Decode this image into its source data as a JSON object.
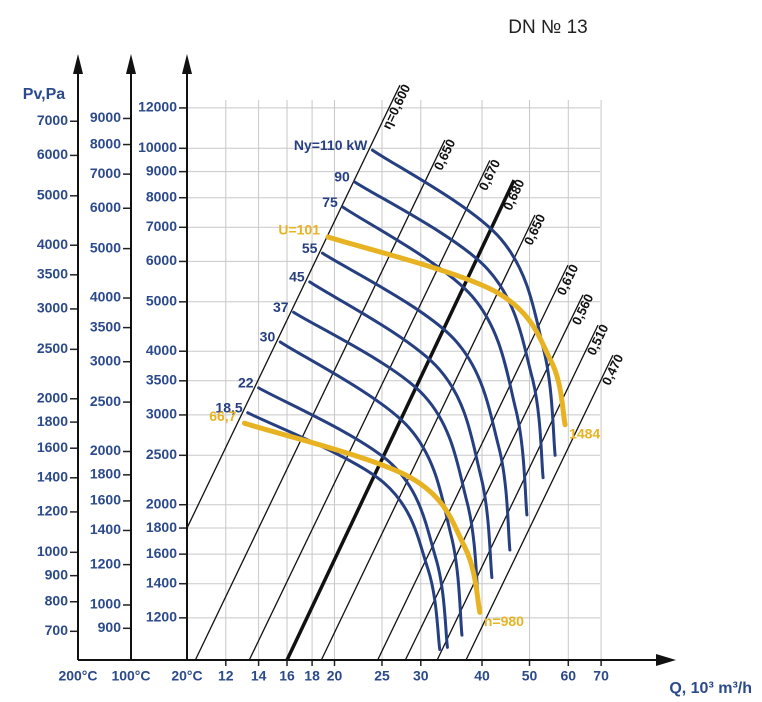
{
  "chart_data": {
    "type": "fan-chart",
    "title": "DN № 13",
    "y_label": "Pv,Pa",
    "x_label": "Q, 10³ m³/h",
    "x_log": true,
    "y_log": true,
    "grid": true,
    "xlim": [
      10,
      100
    ],
    "xticks": [
      12,
      14,
      16,
      18,
      20,
      25,
      30,
      40,
      50,
      60,
      70
    ],
    "y_axes": [
      {
        "label": "200°C",
        "ylim": [
          615,
          9230
        ],
        "yticks": [
          700,
          800,
          900,
          1000,
          1200,
          1400,
          1600,
          1800,
          2000,
          2500,
          3000,
          3500,
          4000,
          5000,
          6000,
          7000
        ]
      },
      {
        "label": "100°C",
        "ylim": [
          780,
          11720
        ],
        "yticks": [
          900,
          1000,
          1200,
          1400,
          1600,
          1800,
          2000,
          2500,
          3000,
          3500,
          4000,
          5000,
          6000,
          7000,
          8000,
          9000
        ]
      },
      {
        "label": "20°C",
        "ylim": [
          992,
          14900
        ],
        "yticks": [
          1200,
          1400,
          1600,
          1800,
          2000,
          2500,
          3000,
          3500,
          4000,
          5000,
          6000,
          7000,
          8000,
          9000,
          10000,
          12000
        ]
      }
    ],
    "efficiency_color": "#111111",
    "efficiency_lines": [
      {
        "name": "η=0,600",
        "x": [
          10,
          27.2
        ],
        "values": [
          1800,
          13300
        ]
      },
      {
        "name": "0,650",
        "x": [
          10.4,
          33.6
        ],
        "values": [
          992,
          10380
        ]
      },
      {
        "name": "0,670",
        "x": [
          13.4,
          41.5
        ],
        "values": [
          992,
          9470
        ]
      },
      {
        "name": "0,680",
        "x": [
          16.0,
          46.5
        ],
        "values": [
          992,
          8660
        ],
        "bold": true
      },
      {
        "name": "0,650",
        "x": [
          18.8,
          51.3
        ],
        "values": [
          992,
          7400
        ]
      },
      {
        "name": "0,610",
        "x": [
          24.5,
          59.9
        ],
        "values": [
          992,
          5900
        ]
      },
      {
        "name": "0,560",
        "x": [
          27.9,
          64.3
        ],
        "values": [
          992,
          5160
        ]
      },
      {
        "name": "0,510",
        "x": [
          32.4,
          69.0
        ],
        "values": [
          992,
          4500
        ]
      },
      {
        "name": "0,470",
        "x": [
          37.1,
          74.0
        ],
        "values": [
          992,
          3930
        ]
      }
    ],
    "series": [
      {
        "name": "Ny=110 kW",
        "color": "#263f80",
        "x": [
          23.9,
          43.7,
          53.5,
          56.4
        ],
        "values": [
          9920,
          6640,
          4010,
          2500
        ]
      },
      {
        "name": "90",
        "color": "#263f80",
        "x": [
          22.0,
          41.1,
          50.6,
          53.3
        ],
        "values": [
          8590,
          5790,
          3560,
          2260
        ]
      },
      {
        "name": "75",
        "color": "#263f80",
        "x": [
          20.8,
          38.3,
          46.9,
          49.4
        ],
        "values": [
          7670,
          5110,
          3070,
          1910
        ]
      },
      {
        "name": "55",
        "color": "#263f80",
        "x": [
          18.9,
          35.2,
          43.3,
          45.6
        ],
        "values": [
          6230,
          4210,
          2590,
          1630
        ]
      },
      {
        "name": "45",
        "color": "#263f80",
        "x": [
          17.8,
          32.7,
          39.8,
          41.9
        ],
        "values": [
          5470,
          3690,
          2270,
          1440
        ]
      },
      {
        "name": "37",
        "color": "#263f80",
        "x": [
          16.5,
          30.5,
          37.3,
          39.3
        ],
        "values": [
          4770,
          3270,
          2020,
          1300
        ]
      },
      {
        "name": "30",
        "color": "#263f80",
        "x": [
          15.5,
          28.4,
          34.6,
          36.4
        ],
        "values": [
          4170,
          2830,
          1740,
          1110
        ]
      },
      {
        "name": "22",
        "color": "#263f80",
        "x": [
          14.0,
          26.2,
          32.2,
          34.0
        ],
        "values": [
          3390,
          2400,
          1570,
          1050
        ]
      },
      {
        "name": "18,5",
        "color": "#263f80",
        "x": [
          13.3,
          25.2,
          31.0,
          32.8
        ],
        "values": [
          3030,
          2210,
          1500,
          1040
        ]
      }
    ],
    "speed_curves": [
      {
        "name": "U=101",
        "end_label": "1484",
        "color": "#e8b323",
        "x": [
          19.4,
          42.7,
          55.3,
          59.1
        ],
        "values": [
          6700,
          5230,
          3830,
          2870
        ]
      },
      {
        "name": "66,7",
        "end_label": "n=980",
        "color": "#e8b323",
        "x": [
          13.1,
          28.6,
          36.9,
          39.6
        ],
        "values": [
          2890,
          2260,
          1650,
          1230
        ]
      }
    ]
  }
}
